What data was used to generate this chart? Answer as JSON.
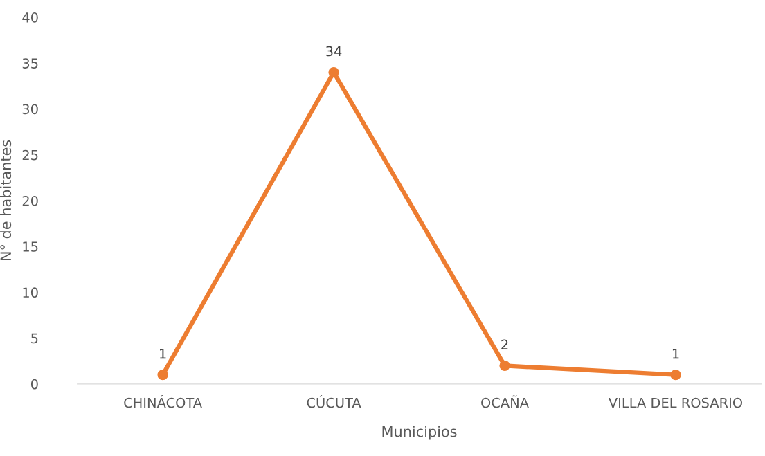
{
  "chart_data": {
    "type": "line",
    "xlabel": "Municipios",
    "ylabel": "N° de habitantes",
    "categories": [
      "CHINÁCOTA",
      "CÚCUTA",
      "OCAÑA",
      "VILLA DEL ROSARIO"
    ],
    "series": [
      {
        "color": "#ed7d31",
        "values": [
          1,
          34,
          2,
          1
        ]
      }
    ],
    "ylim": [
      0,
      40
    ],
    "yticks": [
      0,
      5,
      10,
      15,
      20,
      25,
      30,
      35,
      40
    ],
    "data_labels": true,
    "grid": false,
    "legend": false,
    "marker": "circle",
    "line_style": "solid"
  }
}
